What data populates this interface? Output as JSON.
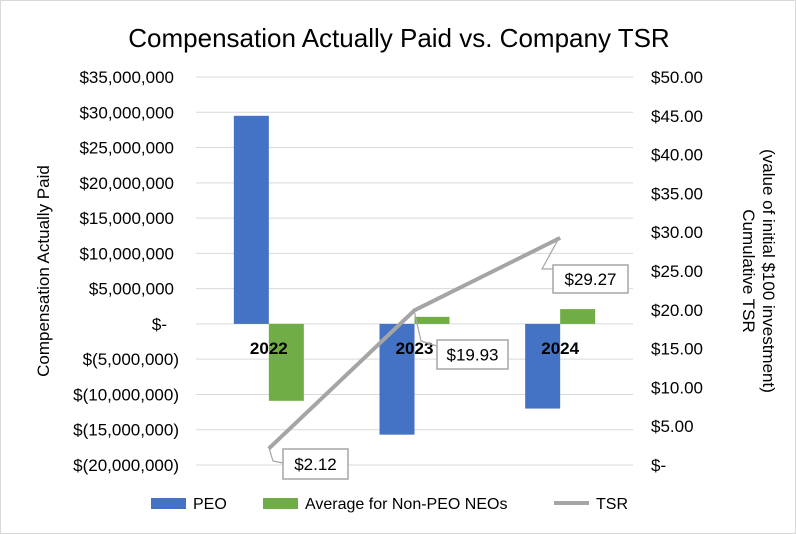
{
  "chart_data": {
    "type": "bar",
    "title": "Compensation Actually Paid vs. Company TSR",
    "categories": [
      "2022",
      "2023",
      "2024"
    ],
    "ylabel": "Compensation Actually Paid",
    "y2label": [
      "Cumulative TSR",
      "(value of initial $100 investment)"
    ],
    "ylim": [
      -20000000,
      35000000
    ],
    "y2lim": [
      0,
      50
    ],
    "yticks": [
      35000000,
      30000000,
      25000000,
      20000000,
      15000000,
      10000000,
      5000000,
      0,
      -5000000,
      -10000000,
      -15000000,
      -20000000
    ],
    "ytick_labels": [
      "$35,000,000",
      "$30,000,000",
      "$25,000,000",
      "$20,000,000",
      "$15,000,000",
      "$10,000,000",
      "$5,000,000",
      "$-",
      "$(5,000,000)",
      "$(10,000,000)",
      "$(15,000,000)",
      "$(20,000,000)"
    ],
    "y2ticks": [
      50,
      45,
      40,
      35,
      30,
      25,
      20,
      15,
      10,
      5,
      0
    ],
    "y2tick_labels": [
      "$50.00",
      "$45.00",
      "$40.00",
      "$35.00",
      "$30.00",
      "$25.00",
      "$20.00",
      "$15.00",
      "$10.00",
      "$5.00",
      "$-"
    ],
    "grid": true,
    "legend_position": "bottom",
    "series": [
      {
        "name": "PEO",
        "type": "bar",
        "axis": "left",
        "color": "#4472c4",
        "values": [
          29500000,
          -15700000,
          -12000000
        ]
      },
      {
        "name": "Average for Non-PEO NEOs",
        "type": "bar",
        "axis": "left",
        "color": "#70ad47",
        "values": [
          -10900000,
          1000000,
          2100000
        ]
      },
      {
        "name": "TSR",
        "type": "line",
        "axis": "right",
        "color": "#a5a5a5",
        "values": [
          2.12,
          19.93,
          29.27
        ],
        "data_labels": [
          "$2.12",
          "$19.93",
          "$29.27"
        ]
      }
    ]
  }
}
